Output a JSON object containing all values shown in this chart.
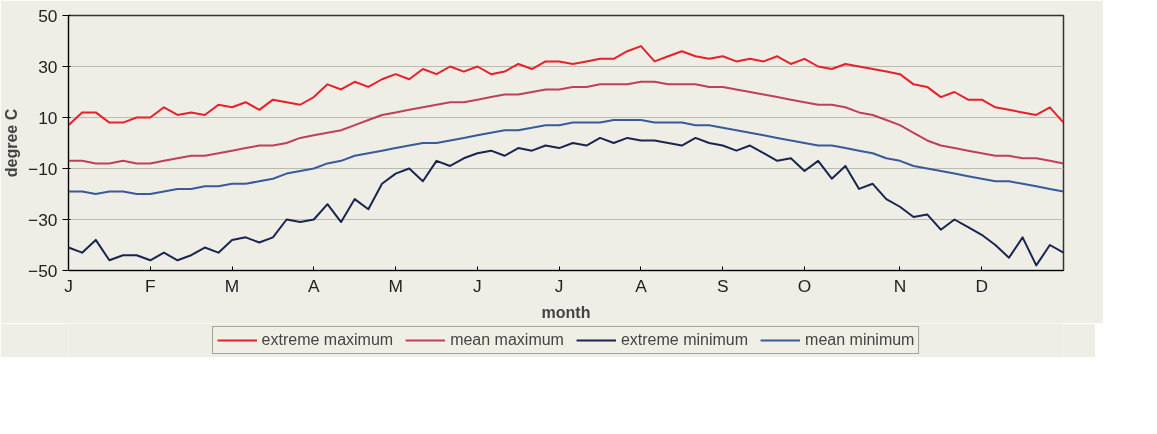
{
  "chart_data": {
    "type": "line",
    "xlabel": "month",
    "ylabel": "degree C",
    "categories": [
      "J",
      null,
      null,
      null,
      null,
      null,
      "F",
      null,
      null,
      null,
      null,
      null,
      "M",
      null,
      null,
      null,
      null,
      null,
      "A",
      null,
      null,
      null,
      null,
      null,
      "M",
      null,
      null,
      null,
      null,
      null,
      "J",
      null,
      null,
      null,
      null,
      null,
      "J",
      null,
      null,
      null,
      null,
      null,
      "A",
      null,
      null,
      null,
      null,
      null,
      "S",
      null,
      null,
      null,
      null,
      null,
      "O",
      null,
      null,
      null,
      null,
      null,
      null,
      "N",
      null,
      null,
      null,
      null,
      null,
      "D",
      null,
      null,
      null,
      null,
      null,
      null
    ],
    "ylim": [
      -50,
      50
    ],
    "yticks": [
      -50,
      -30,
      -10,
      10,
      30,
      50
    ],
    "grid": "y",
    "legend": "bottom",
    "line_style": "solid",
    "marker": "none",
    "series": [
      {
        "name": "extreme maximum",
        "color": "#e8202a",
        "values": [
          7,
          12,
          12,
          8,
          8,
          10,
          10,
          14,
          11,
          12,
          11,
          15,
          14,
          16,
          13,
          17,
          16,
          15,
          18,
          23,
          21,
          24,
          22,
          25,
          27,
          25,
          29,
          27,
          30,
          28,
          30,
          27,
          28,
          31,
          29,
          32,
          32,
          31,
          32,
          33,
          33,
          36,
          38,
          32,
          34,
          36,
          34,
          33,
          34,
          32,
          33,
          32,
          34,
          31,
          33,
          30,
          29,
          31,
          30,
          29,
          28,
          27,
          23,
          22,
          18,
          20,
          17,
          17,
          14,
          13,
          12,
          11,
          14,
          8
        ]
      },
      {
        "name": "mean maximum",
        "color": "#c0405a",
        "values": [
          -7,
          -7,
          -8,
          -8,
          -7,
          -8,
          -8,
          -7,
          -6,
          -5,
          -5,
          -4,
          -3,
          -2,
          -1,
          -1,
          0,
          2,
          3,
          4,
          5,
          7,
          9,
          11,
          12,
          13,
          14,
          15,
          16,
          16,
          17,
          18,
          19,
          19,
          20,
          21,
          21,
          22,
          22,
          23,
          23,
          23,
          24,
          24,
          23,
          23,
          23,
          22,
          22,
          21,
          20,
          19,
          18,
          17,
          16,
          15,
          15,
          14,
          12,
          11,
          9,
          7,
          4,
          1,
          -1,
          -2,
          -3,
          -4,
          -5,
          -5,
          -6,
          -6,
          -7,
          -8
        ]
      },
      {
        "name": "extreme minimum",
        "color": "#1a2550",
        "values": [
          -41,
          -43,
          -38,
          -46,
          -44,
          -44,
          -46,
          -43,
          -46,
          -44,
          -41,
          -43,
          -38,
          -37,
          -39,
          -37,
          -30,
          -31,
          -30,
          -24,
          -31,
          -22,
          -26,
          -16,
          -12,
          -10,
          -15,
          -7,
          -9,
          -6,
          -4,
          -3,
          -5,
          -2,
          -3,
          -1,
          -2,
          0,
          -1,
          2,
          0,
          2,
          1,
          1,
          0,
          -1,
          2,
          0,
          -1,
          -3,
          -1,
          -4,
          -7,
          -6,
          -11,
          -7,
          -14,
          -9,
          -18,
          -16,
          -22,
          -25,
          -29,
          -28,
          -34,
          -30,
          -33,
          -36,
          -40,
          -45,
          -37,
          -48,
          -40,
          -43
        ]
      },
      {
        "name": "mean minimum",
        "color": "#3a5a9a",
        "values": [
          -19,
          -19,
          -20,
          -19,
          -19,
          -20,
          -20,
          -19,
          -18,
          -18,
          -17,
          -17,
          -16,
          -16,
          -15,
          -14,
          -12,
          -11,
          -10,
          -8,
          -7,
          -5,
          -4,
          -3,
          -2,
          -1,
          0,
          0,
          1,
          2,
          3,
          4,
          5,
          5,
          6,
          7,
          7,
          8,
          8,
          8,
          9,
          9,
          9,
          8,
          8,
          8,
          7,
          7,
          6,
          5,
          4,
          3,
          2,
          1,
          0,
          -1,
          -1,
          -2,
          -3,
          -4,
          -6,
          -7,
          -9,
          -10,
          -11,
          -12,
          -13,
          -14,
          -15,
          -15,
          -16,
          -17,
          -18,
          -19
        ]
      }
    ]
  }
}
